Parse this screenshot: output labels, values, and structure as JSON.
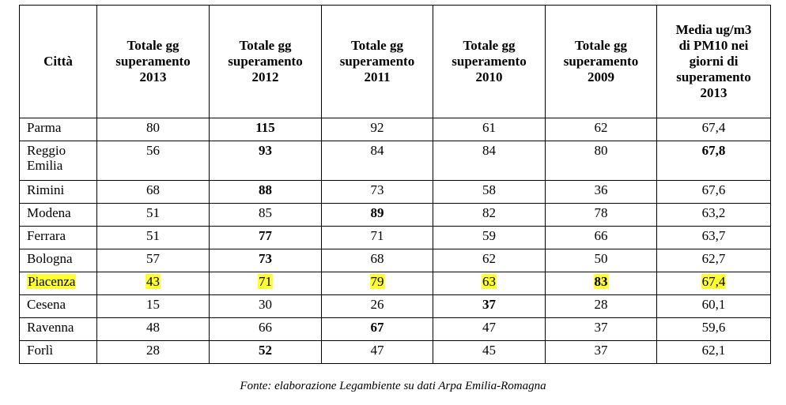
{
  "columns": [
    {
      "l1": "Città",
      "l2": "",
      "l3": "",
      "l4": "",
      "l5": ""
    },
    {
      "l1": "Totale gg",
      "l2": "superamento",
      "l3": "2013",
      "l4": "",
      "l5": ""
    },
    {
      "l1": "Totale gg",
      "l2": "superamento",
      "l3": "2012",
      "l4": "",
      "l5": ""
    },
    {
      "l1": "Totale gg",
      "l2": "superamento",
      "l3": "2011",
      "l4": "",
      "l5": ""
    },
    {
      "l1": "Totale gg",
      "l2": "superamento",
      "l3": "2010",
      "l4": "",
      "l5": ""
    },
    {
      "l1": "Totale gg",
      "l2": "superamento",
      "l3": "2009",
      "l4": "",
      "l5": ""
    },
    {
      "l1": "Media ug/m3",
      "l2": "di PM10 nei",
      "l3": "giorni di",
      "l4": "superamento",
      "l5": "2013"
    }
  ],
  "rows": [
    {
      "city": "Parma",
      "c2013": "80",
      "c2012": "115",
      "c2011": "92",
      "c2010": "61",
      "c2009": "62",
      "media": "67,4"
    },
    {
      "city1": "Reggio",
      "city2": "Emilia",
      "c2013": "56",
      "c2012": "93",
      "c2011": "84",
      "c2010": "84",
      "c2009": "80",
      "media": "67,8"
    },
    {
      "city": "Rimini",
      "c2013": "68",
      "c2012": "88",
      "c2011": "73",
      "c2010": "58",
      "c2009": "36",
      "media": "67,6"
    },
    {
      "city": "Modena",
      "c2013": "51",
      "c2012": "85",
      "c2011": "89",
      "c2010": "82",
      "c2009": "78",
      "media": "63,2"
    },
    {
      "city": "Ferrara",
      "c2013": "51",
      "c2012": "77",
      "c2011": "71",
      "c2010": "59",
      "c2009": "66",
      "media": "63,7"
    },
    {
      "city": "Bologna",
      "c2013": "57",
      "c2012": "73",
      "c2011": "68",
      "c2010": "62",
      "c2009": "50",
      "media": "62,7"
    },
    {
      "city": "Piacenza",
      "c2013": "43",
      "c2012": "71",
      "c2011": "79",
      "c2010": "63",
      "c2009": "83",
      "media": "67,4"
    },
    {
      "city": "Cesena",
      "c2013": "15",
      "c2012": "30",
      "c2011": "26",
      "c2010": "37",
      "c2009": "28",
      "media": "60,1"
    },
    {
      "city": "Ravenna",
      "c2013": "48",
      "c2012": "66",
      "c2011": "67",
      "c2010": "47",
      "c2009": "37",
      "media": "59,6"
    },
    {
      "city": "Forlì",
      "c2013": "28",
      "c2012": "52",
      "c2011": "47",
      "c2010": "45",
      "c2009": "37",
      "media": "62,1"
    }
  ],
  "highlight_color": "#ffff33",
  "source": "Fonte: elaborazione Legambiente su dati Arpa Emilia-Romagna"
}
